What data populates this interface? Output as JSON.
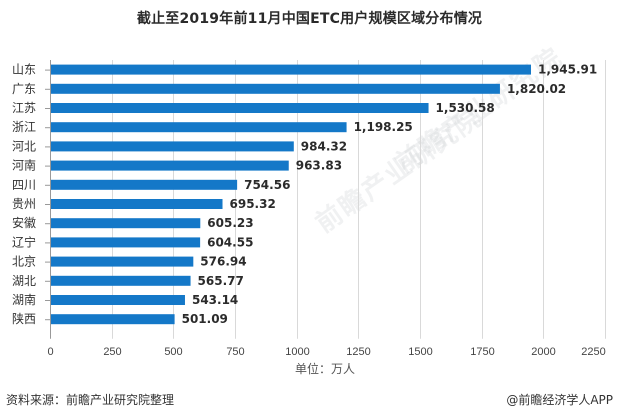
{
  "chart_data": {
    "type": "bar",
    "orientation": "horizontal",
    "title": "截止至2019年前11月中国ETC用户规模区域分布情况",
    "xlabel": "单位：万人",
    "ylabel": "",
    "categories": [
      "山东",
      "广东",
      "江苏",
      "浙江",
      "河北",
      "河南",
      "四川",
      "贵州",
      "安徽",
      "辽宁",
      "北京",
      "湖北",
      "湖南",
      "陕西"
    ],
    "values": [
      1945.91,
      1820.02,
      1530.58,
      1198.25,
      984.32,
      963.83,
      754.56,
      695.32,
      605.23,
      604.55,
      576.94,
      565.77,
      543.14,
      501.09
    ],
    "value_labels": [
      "1,945.91",
      "1,820.02",
      "1,530.58",
      "1,198.25",
      "984.32",
      "963.83",
      "754.56",
      "695.32",
      "605.23",
      "604.55",
      "576.94",
      "565.77",
      "543.14",
      "501.09"
    ],
    "xlim": [
      0,
      2250
    ],
    "xticks": [
      0,
      250,
      500,
      750,
      1000,
      1250,
      1500,
      1750,
      2000,
      2250
    ],
    "grid": "vertical",
    "legend": "none",
    "bar_color": "#1478c8"
  },
  "footer": {
    "source": "资料来源：前瞻产业研究院整理",
    "credit": "@前瞻经济学人APP"
  },
  "watermark": {
    "text": "前瞻产业研究院"
  }
}
